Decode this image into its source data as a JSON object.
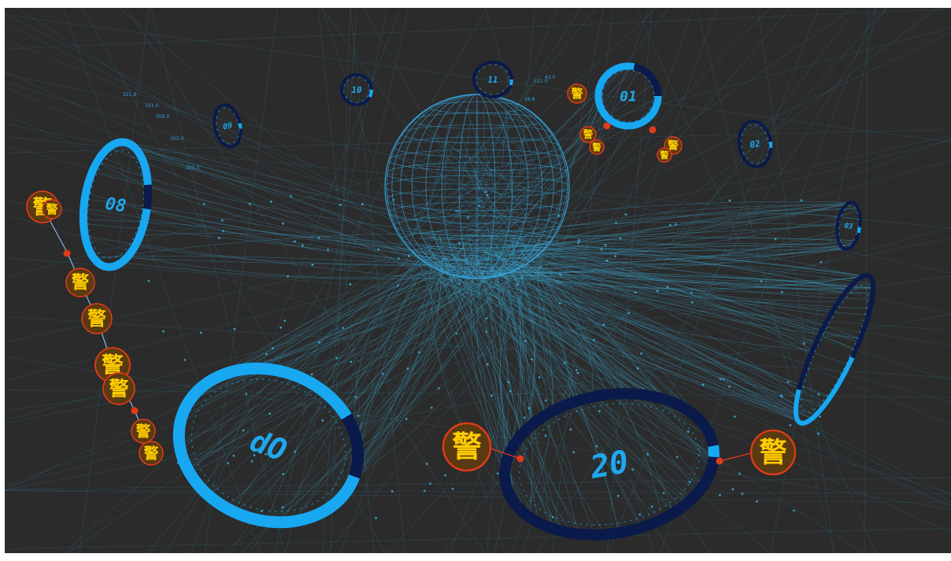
{
  "scene": {
    "background_color": "#2b2b2b",
    "grid_color": "#2c6f80",
    "link_color": "#3fb6e6",
    "ring_color": "#18a8f2",
    "ring_track_color": "#0a1a4a",
    "alert_fill_color": "#5a3a10",
    "alert_border_color": "#e23a1a",
    "alert_text_color": "#ffcc00",
    "sphere_color": "#35a6e0"
  },
  "rings": [
    {
      "label": "01",
      "progress": 0.78
    },
    {
      "label": "02",
      "progress": 0.05
    },
    {
      "label": "03",
      "progress": 0.05
    },
    {
      "label": "08",
      "progress": 0.92
    },
    {
      "label": "09",
      "progress": 0.05
    },
    {
      "label": "10",
      "progress": 0.08
    },
    {
      "label": "11",
      "progress": 0.05
    },
    {
      "label": "20",
      "progress": 0.02
    },
    {
      "label": "dO",
      "progress": 0.88
    },
    {
      "label": "side-ring",
      "progress": 0.35
    }
  ],
  "alerts": {
    "glyph": "警",
    "count": 15
  },
  "node_labels": [
    "321.8",
    "321.0",
    "309.9",
    "302.0",
    "325.0",
    "321.0",
    "42.0",
    "18.8"
  ]
}
